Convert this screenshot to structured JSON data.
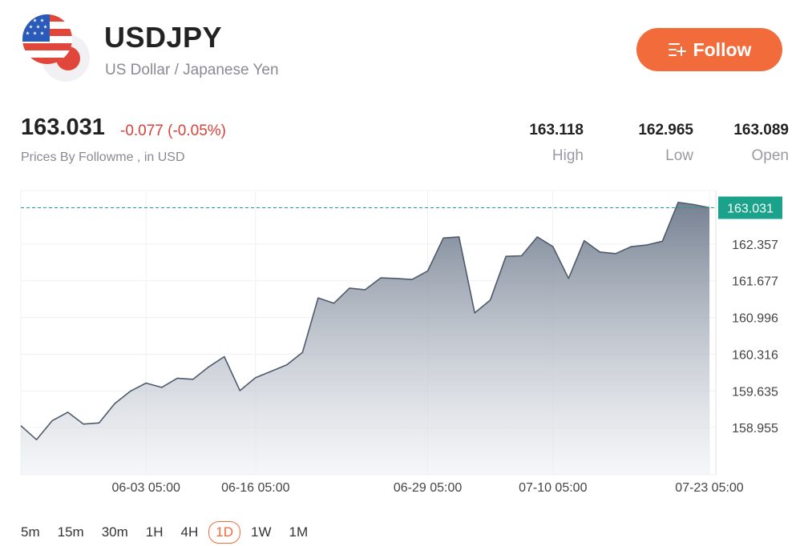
{
  "header": {
    "symbol": "USDJPY",
    "name": "US Dollar / Japanese Yen",
    "follow_label": "Follow"
  },
  "quote": {
    "price": "163.031",
    "change": "-0.077 (-0.05%)",
    "source": "Prices By Followme , in USD",
    "stats": [
      {
        "value": "163.118",
        "label": "High"
      },
      {
        "value": "162.965",
        "label": "Low"
      },
      {
        "value": "163.089",
        "label": "Open"
      }
    ]
  },
  "periods": [
    "5m",
    "15m",
    "30m",
    "1H",
    "4H",
    "1D",
    "1W",
    "1M"
  ],
  "active_period": "1D",
  "colors": {
    "accent": "#f26b3a",
    "down": "#d9413a",
    "line": "#4f5a6b",
    "last_price": "#1aa38a"
  },
  "chart_data": {
    "type": "area",
    "x_tick_labels": [
      "06-03 05:00",
      "06-16 05:00",
      "06-29 05:00",
      "07-10 05:00",
      "07-23 05:00"
    ],
    "x_tick_index": [
      8,
      15,
      26,
      34,
      44
    ],
    "y_tick_labels": [
      "162.357",
      "161.677",
      "160.996",
      "160.316",
      "159.635",
      "158.955"
    ],
    "y_ticks": [
      162.357,
      161.677,
      160.996,
      160.316,
      159.635,
      158.955
    ],
    "ylim": [
      158.08,
      163.35
    ],
    "last_price": 163.031,
    "last_price_label": "163.031",
    "grid": true,
    "values": [
      158.99,
      158.73,
      159.08,
      159.24,
      159.02,
      159.04,
      159.4,
      159.63,
      159.78,
      159.7,
      159.87,
      159.85,
      160.08,
      160.27,
      159.64,
      159.88,
      160.0,
      160.12,
      160.35,
      161.36,
      161.26,
      161.54,
      161.51,
      161.73,
      161.72,
      161.7,
      161.86,
      162.47,
      162.49,
      161.08,
      161.32,
      162.13,
      162.14,
      162.49,
      162.31,
      161.72,
      162.42,
      162.21,
      162.18,
      162.31,
      162.34,
      162.41,
      163.13,
      163.09,
      163.031
    ]
  }
}
